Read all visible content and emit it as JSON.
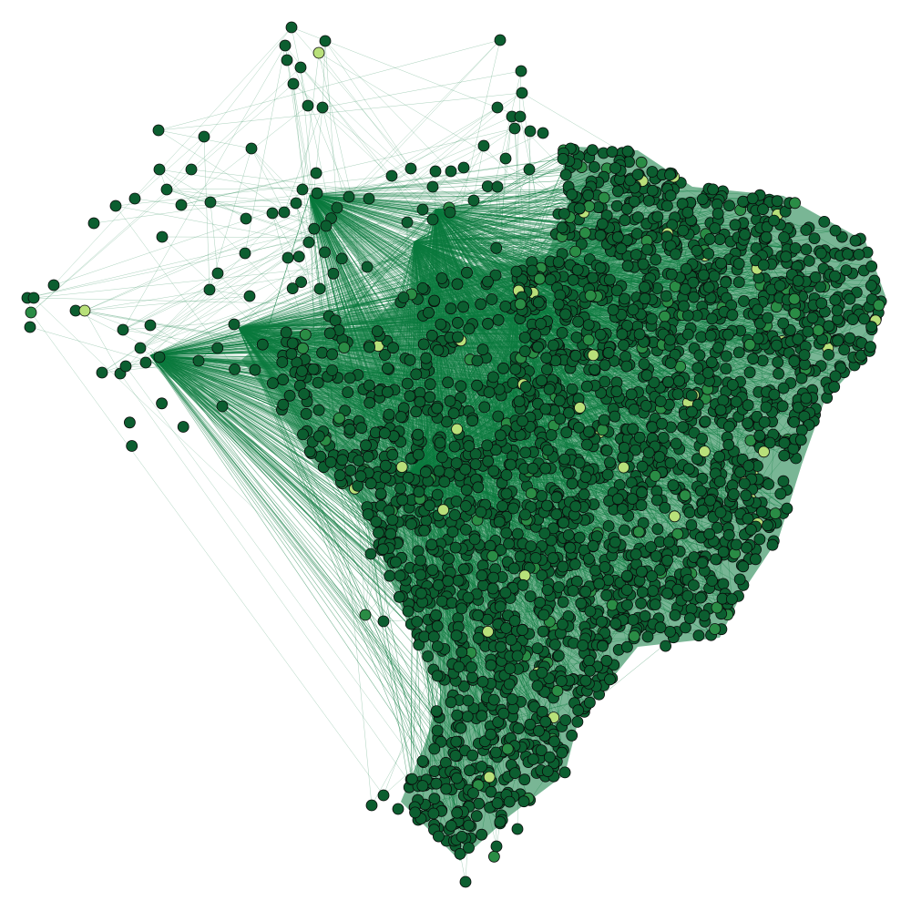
{
  "figure": {
    "type": "network-graph",
    "title": "",
    "background": "#ffffff"
  },
  "colors": {
    "edge": "#0b7a3e",
    "node_fill": "#0c5e30",
    "node_fill_alt": "#2a8c45",
    "node_fill_light": "#b8e07a",
    "node_stroke": "#0a0a0a"
  },
  "chart_data": {
    "type": "network",
    "nodes": [
      {
        "id": "n1",
        "x": -59.9,
        "y": -2.6
      },
      {
        "id": "n2",
        "x": -60.7,
        "y": -3.1
      },
      {
        "id": "n3",
        "x": -60.2,
        "y": -4.2
      },
      {
        "id": "n4",
        "x": -59.4,
        "y": -4.5
      },
      {
        "id": "n5",
        "x": -59.8,
        "y": -5.2
      },
      {
        "id": "n6",
        "x": -61.4,
        "y": -4.4
      },
      {
        "id": "n7",
        "x": -61.3,
        "y": -5.6
      },
      {
        "id": "n8",
        "x": -61.7,
        "y": -5.9
      },
      {
        "id": "n9",
        "x": -60.0,
        "y": -7.2
      },
      {
        "id": "n10",
        "x": -59.7,
        "y": -7.4
      },
      {
        "id": "n11",
        "x": -65.2,
        "y": -8.7
      },
      {
        "id": "n12",
        "x": -64.4,
        "y": -9.7
      },
      {
        "id": "n13",
        "x": -67.8,
        "y": -11.3
      },
      {
        "id": "n14",
        "x": -69.3,
        "y": -12.2
      },
      {
        "id": "n15",
        "x": -69.2,
        "y": -13.3
      },
      {
        "id": "n16",
        "x": -66.8,
        "y": -12.4
      },
      {
        "id": "n17",
        "x": -62.2,
        "y": -11.6
      },
      {
        "id": "n18",
        "x": -54.4,
        "y": -2.1
      },
      {
        "id": "n19",
        "x": -52.2,
        "y": -4.0
      },
      {
        "id": "n20",
        "x": -50.5,
        "y": -5.6
      },
      {
        "id": "n21",
        "x": -49.1,
        "y": -6.7
      },
      {
        "id": "n22",
        "x": -47.6,
        "y": -7.7
      },
      {
        "id": "n23",
        "x": -45.9,
        "y": -8.4
      },
      {
        "id": "n24",
        "x": -44.2,
        "y": -9.3
      },
      {
        "id": "n25",
        "x": -42.1,
        "y": -10.6
      },
      {
        "id": "n26",
        "x": -40.2,
        "y": -12.1
      },
      {
        "id": "n27",
        "x": -38.6,
        "y": -13.0
      },
      {
        "id": "n28",
        "x": -35.5,
        "y": -9.2
      },
      {
        "id": "n29",
        "x": -35.1,
        "y": -7.0
      },
      {
        "id": "n30",
        "x": -38.9,
        "y": -5.6
      },
      {
        "id": "n31",
        "x": -41.7,
        "y": -4.9
      },
      {
        "id": "n32",
        "x": -44.1,
        "y": -4.1
      },
      {
        "id": "n33",
        "x": -46.6,
        "y": -3.3
      },
      {
        "id": "n34",
        "x": -49.3,
        "y": -2.4
      },
      {
        "id": "n35",
        "x": -52.6,
        "y": -1.1
      },
      {
        "id": "n36",
        "x": -55.1,
        "y": -6.5
      },
      {
        "id": "n37",
        "x": -57.7,
        "y": -8.6
      },
      {
        "id": "n38",
        "x": -55.3,
        "y": -11.0
      },
      {
        "id": "n39",
        "x": -53.4,
        "y": -14.6
      },
      {
        "id": "n40",
        "x": -51.2,
        "y": -18.0
      },
      {
        "id": "n41",
        "x": -49.4,
        "y": -20.2
      },
      {
        "id": "n42",
        "x": -47.6,
        "y": -22.4
      },
      {
        "id": "n43",
        "x": -44.3,
        "y": -22.7
      },
      {
        "id": "n44",
        "x": -43.1,
        "y": -19.3
      },
      {
        "id": "n45",
        "x": -41.2,
        "y": -16.2
      },
      {
        "id": "n46",
        "x": -43.7,
        "y": -14.4
      },
      {
        "id": "n47",
        "x": -46.3,
        "y": -12.9
      },
      {
        "id": "n48",
        "x": -48.8,
        "y": -11.5
      },
      {
        "id": "n49",
        "x": -50.9,
        "y": -9.6
      },
      {
        "id": "n50",
        "x": -47.9,
        "y": -16.7
      },
      {
        "id": "n51",
        "x": -50.3,
        "y": -26.1
      },
      {
        "id": "n52",
        "x": -52.8,
        "y": -27.6
      },
      {
        "id": "n53",
        "x": -51.6,
        "y": -29.8
      },
      {
        "id": "n54",
        "x": -53.9,
        "y": -30.9
      },
      {
        "id": "n55",
        "x": -52.3,
        "y": -32.6
      },
      {
        "id": "n56",
        "x": -49.7,
        "y": -28.7
      },
      {
        "id": "n57",
        "x": -53.7,
        "y": -24.6
      },
      {
        "id": "n58",
        "x": -55.5,
        "y": -20.3
      },
      {
        "id": "n59",
        "x": -57.9,
        "y": -16.2
      },
      {
        "id": "n60",
        "x": -60.4,
        "y": -13.8
      }
    ]
  }
}
